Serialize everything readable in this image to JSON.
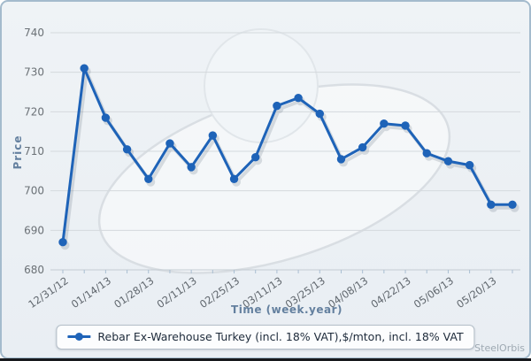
{
  "widget": {
    "brand_watermark": "SteelOrbis"
  },
  "legend": {
    "label": "Rebar Ex-Warehouse Turkey (incl. 18% VAT),$/mton, incl. 18% VAT"
  },
  "chart_data": {
    "type": "line",
    "title": "",
    "xlabel": "Time (week.year)",
    "ylabel": "Price",
    "ylim": [
      680,
      740
    ],
    "y_ticks": [
      680,
      690,
      700,
      710,
      720,
      730,
      740
    ],
    "grid": true,
    "legend_position": "bottom",
    "x_label_every": 2,
    "x_tick_labels": [
      "12/31/12",
      "01/14/13",
      "01/28/13",
      "02/11/13",
      "02/25/13",
      "03/11/13",
      "03/25/13",
      "04/08/13",
      "04/22/13",
      "05/06/13",
      "05/20/13"
    ],
    "series": [
      {
        "name": "Rebar Ex-Warehouse Turkey (incl. 18% VAT),$/mton, incl. 18% VAT",
        "color": "#1e63b8",
        "values": [
          687,
          731,
          718.5,
          710.5,
          703,
          712,
          706,
          714,
          703,
          708.5,
          721.5,
          723.5,
          719.5,
          708,
          711,
          717,
          716.5,
          709.5,
          707.5,
          706.5,
          696.5,
          696.5
        ]
      }
    ],
    "colors": {
      "line": "#1e63b8",
      "plot_background": "#edf1f5",
      "gridline": "#d4d9dd",
      "axis_line": "#c3cbd2",
      "tick_label": "#6b7176",
      "axis_title": "#64809f"
    }
  }
}
